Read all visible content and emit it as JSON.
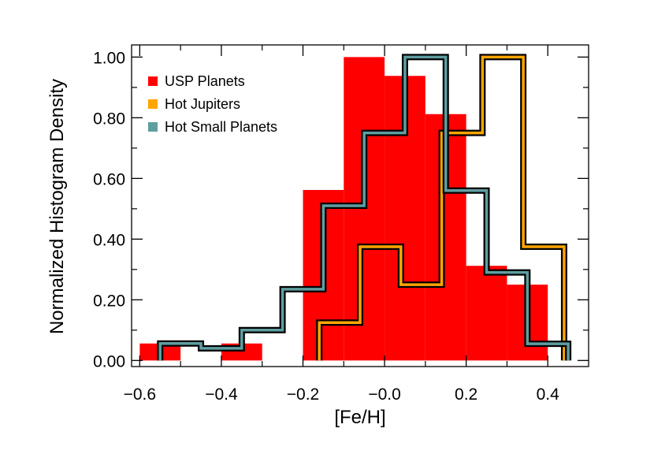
{
  "chart_data": {
    "type": "bar",
    "title": "",
    "xlabel": "[Fe/H]",
    "ylabel": "Normalized Histogram Density",
    "xlim": [
      -0.62,
      0.5
    ],
    "ylim": [
      -0.02,
      1.04
    ],
    "x_ticks": [
      -0.6,
      -0.4,
      -0.2,
      0.0,
      0.2,
      0.4
    ],
    "x_tick_labels": [
      "−0.6",
      "−0.4",
      "−0.2",
      "−0.0",
      "0.2",
      "0.4"
    ],
    "y_ticks": [
      0.0,
      0.2,
      0.4,
      0.6,
      0.8,
      1.0
    ],
    "y_tick_labels": [
      "0.00",
      "0.20",
      "0.40",
      "0.60",
      "0.80",
      "1.00"
    ],
    "legend_position": "top-left",
    "series": [
      {
        "name": "USP Planets",
        "style": "filled",
        "color": "#ff0000",
        "bins": [
          {
            "x0": -0.6,
            "x1": -0.5,
            "y": 0.056
          },
          {
            "x0": -0.5,
            "x1": -0.4,
            "y": 0.0
          },
          {
            "x0": -0.4,
            "x1": -0.3,
            "y": 0.056
          },
          {
            "x0": -0.3,
            "x1": -0.2,
            "y": 0.0
          },
          {
            "x0": -0.2,
            "x1": -0.1,
            "y": 0.562
          },
          {
            "x0": -0.1,
            "x1": 0.0,
            "y": 1.0
          },
          {
            "x0": 0.0,
            "x1": 0.1,
            "y": 0.938
          },
          {
            "x0": 0.1,
            "x1": 0.2,
            "y": 0.812
          },
          {
            "x0": 0.2,
            "x1": 0.3,
            "y": 0.312
          },
          {
            "x0": 0.3,
            "x1": 0.4,
            "y": 0.25
          }
        ]
      },
      {
        "name": "Hot Jupiters",
        "style": "step",
        "color": "#ffa500",
        "bins": [
          {
            "x0": -0.16,
            "x1": -0.06,
            "y": 0.125
          },
          {
            "x0": -0.06,
            "x1": 0.04,
            "y": 0.375
          },
          {
            "x0": 0.04,
            "x1": 0.14,
            "y": 0.25
          },
          {
            "x0": 0.14,
            "x1": 0.24,
            "y": 0.75
          },
          {
            "x0": 0.24,
            "x1": 0.34,
            "y": 1.0
          },
          {
            "x0": 0.34,
            "x1": 0.44,
            "y": 0.375
          }
        ]
      },
      {
        "name": "Hot Small Planets",
        "style": "step",
        "color": "#5f9ea0",
        "bins": [
          {
            "x0": -0.55,
            "x1": -0.45,
            "y": 0.056
          },
          {
            "x0": -0.45,
            "x1": -0.35,
            "y": 0.04
          },
          {
            "x0": -0.35,
            "x1": -0.25,
            "y": 0.1
          },
          {
            "x0": -0.25,
            "x1": -0.15,
            "y": 0.235
          },
          {
            "x0": -0.15,
            "x1": -0.05,
            "y": 0.51
          },
          {
            "x0": -0.05,
            "x1": 0.05,
            "y": 0.75
          },
          {
            "x0": 0.05,
            "x1": 0.15,
            "y": 1.0
          },
          {
            "x0": 0.15,
            "x1": 0.25,
            "y": 0.56
          },
          {
            "x0": 0.25,
            "x1": 0.35,
            "y": 0.29
          },
          {
            "x0": 0.35,
            "x1": 0.45,
            "y": 0.055
          }
        ]
      }
    ]
  }
}
